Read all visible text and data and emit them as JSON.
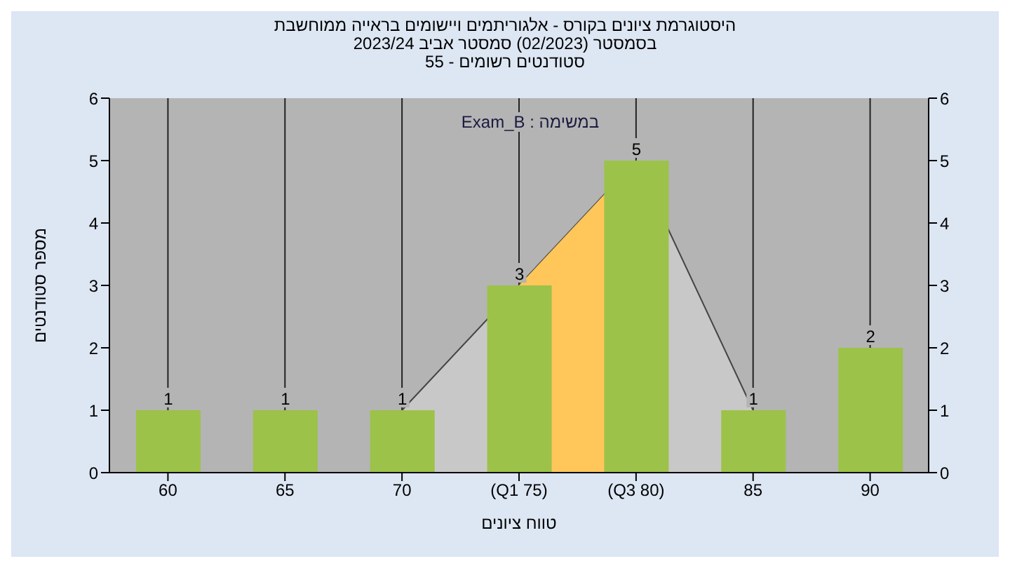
{
  "chart_data": {
    "type": "bar",
    "title": "היסטוגרמת ציונים בקורס - אלגוריתמים ויישומים בראייה ממוחשבת",
    "subtitle": "בסמסטר  (02/2023)  סמסטר אביב 2023/24\nסטודנטים רשומים - 55",
    "xlabel": "טווח ציונים",
    "ylabel": "מספר סטודנטים",
    "annotations": [
      "במשימה : Exam_B"
    ],
    "categories": [
      "60",
      "65",
      "70",
      "(Q1 75)",
      "(Q3 80)",
      "85",
      "90"
    ],
    "series": [
      {
        "type": "area",
        "color": "#c8c8c8",
        "values": [
          null,
          null,
          1,
          3,
          5,
          1,
          null
        ]
      },
      {
        "type": "area",
        "color": "#ffc65a",
        "values": [
          null,
          null,
          null,
          3,
          5,
          null,
          null
        ]
      },
      {
        "color": "#9cc24a",
        "values": [
          1,
          1,
          1,
          3,
          5,
          1,
          2
        ],
        "value_labels": [
          "1",
          "1",
          "1",
          "3",
          "5",
          "1",
          "2"
        ]
      }
    ],
    "ylim": [
      0,
      6
    ],
    "yticks": [
      0,
      1,
      2,
      3,
      4,
      5,
      6
    ],
    "y2lim": [
      0,
      6
    ],
    "y2ticks": [
      0,
      1,
      2,
      3,
      4,
      5,
      6
    ],
    "grid": "x",
    "legend": false
  }
}
